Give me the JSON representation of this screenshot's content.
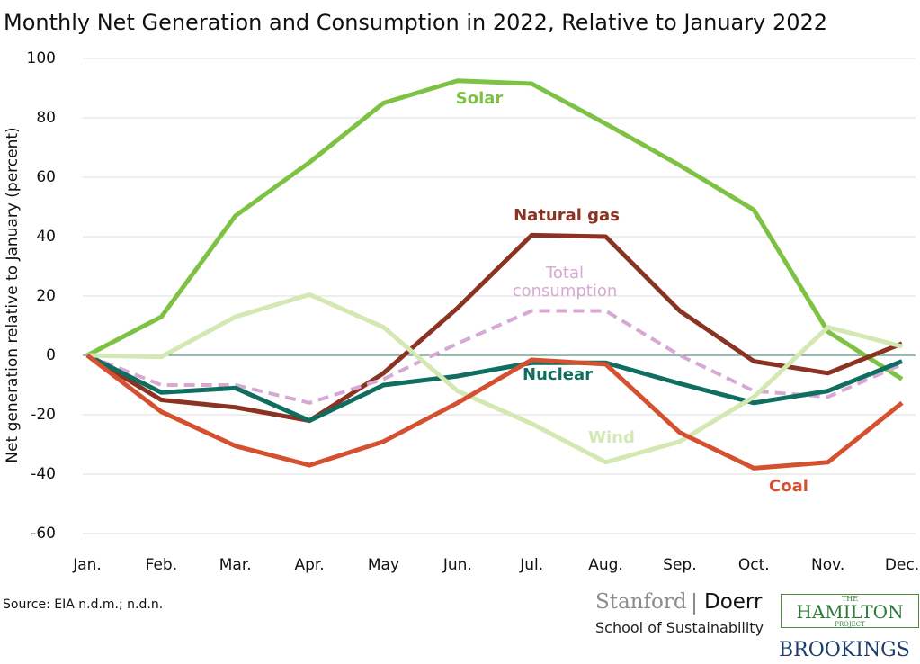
{
  "chart_data": {
    "type": "line",
    "title": "Monthly Net Generation and Consumption in 2022, Relative to January 2022",
    "y_label": "Net generation relative to January (percent)",
    "categories": [
      "Jan.",
      "Feb.",
      "Mar.",
      "Apr.",
      "May",
      "Jun.",
      "Jul.",
      "Aug.",
      "Sep.",
      "Oct.",
      "Nov.",
      "Dec."
    ],
    "ylim": [
      -60,
      100
    ],
    "yticks": [
      -60,
      -40,
      -20,
      0,
      20,
      40,
      60,
      80,
      100
    ],
    "grid": true,
    "series": [
      {
        "name": "Solar",
        "color": "#7dc242",
        "values": [
          0,
          13,
          47,
          65,
          85,
          92.5,
          91.5,
          78,
          64,
          49,
          8,
          -8
        ]
      },
      {
        "name": "Natural gas",
        "color": "#8b3322",
        "values": [
          0,
          -15,
          -17.5,
          -22,
          -6,
          16,
          40.5,
          40,
          15,
          -2,
          -6,
          4
        ]
      },
      {
        "name": "Total consumption",
        "color": "#d7a8d3",
        "dashed": true,
        "values": [
          0,
          -10,
          -10,
          -16,
          -8,
          4,
          15,
          15,
          0,
          -12,
          -14,
          -3
        ]
      },
      {
        "name": "Nuclear",
        "color": "#0f6e5f",
        "values": [
          0,
          -12.5,
          -11,
          -22,
          -10,
          -7,
          -2.5,
          -2.5,
          -9.5,
          -16,
          -12,
          -2
        ]
      },
      {
        "name": "Wind",
        "color": "#d3e8b2",
        "values": [
          0,
          -0.5,
          13,
          20.5,
          9.5,
          -12,
          -23,
          -36,
          -29,
          -14,
          9.5,
          3
        ]
      },
      {
        "name": "Coal",
        "color": "#d4502f",
        "values": [
          0,
          -19,
          -30.5,
          -37,
          -29,
          -16,
          -1.5,
          -3,
          -26,
          -38,
          -36,
          -16
        ]
      }
    ]
  },
  "source": "Source: EIA n.d.m.; n.d.n.",
  "logos": {
    "stanford": "Stanford",
    "doerr": "Doerr",
    "school": "School of Sustainability",
    "hamilton_the": "THE",
    "hamilton": "HAMILTON",
    "hamilton_project": "PROJECT",
    "brookings": "BROOKINGS"
  }
}
